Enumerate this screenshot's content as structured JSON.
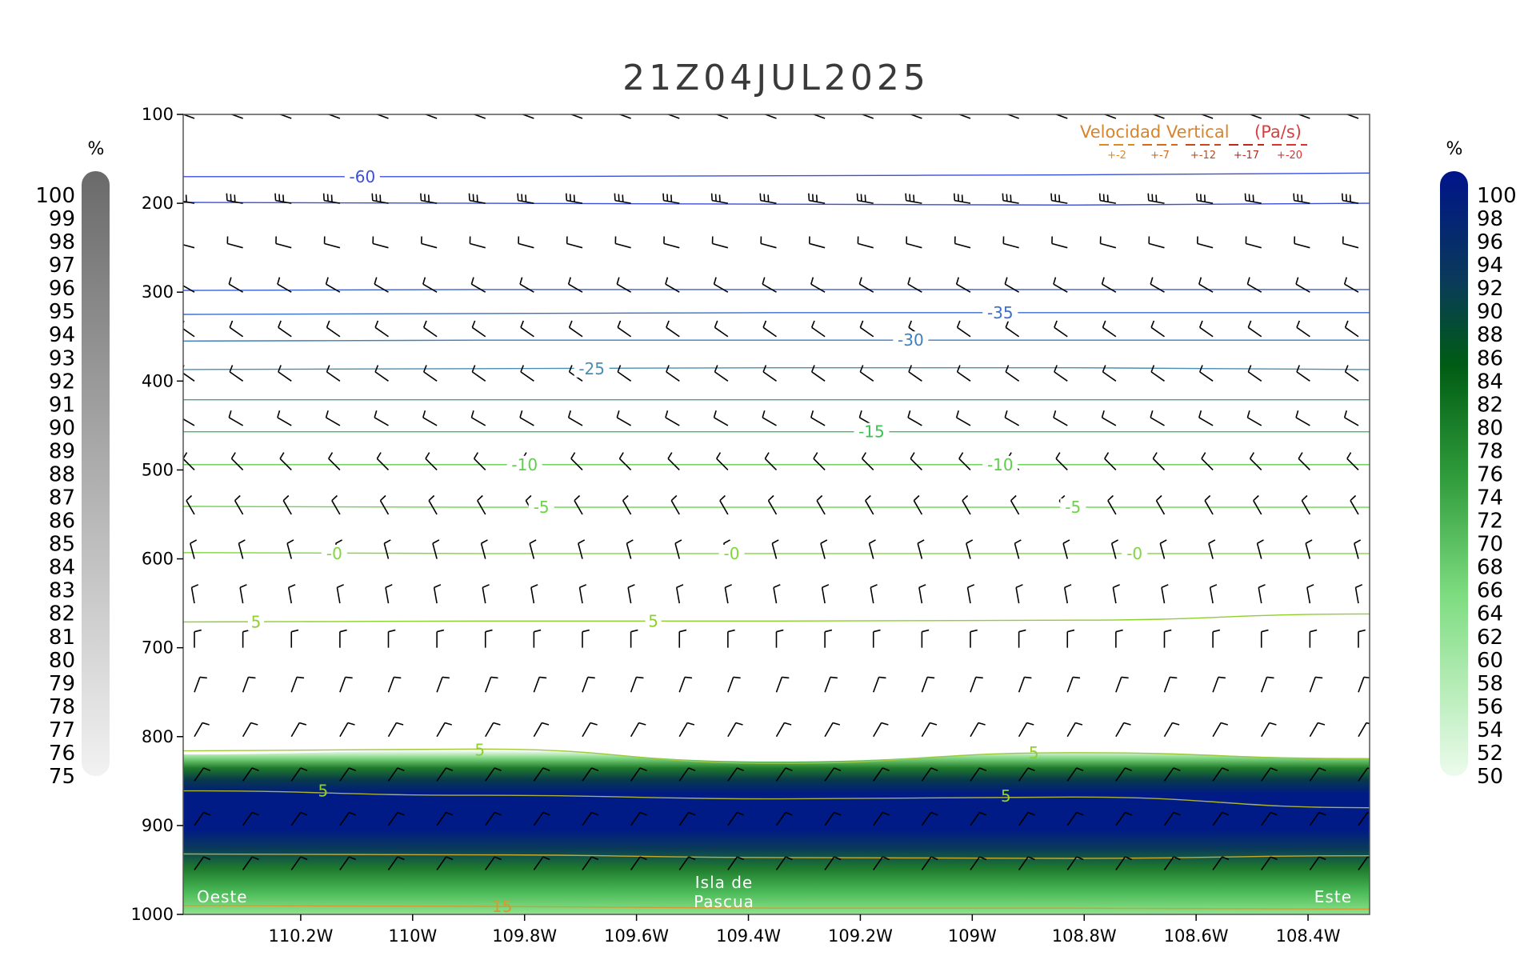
{
  "chart_data": {
    "type": "cross-section",
    "title": "21Z04JUL2025",
    "x_ticks": [
      "110.2W",
      "110W",
      "109.8W",
      "109.6W",
      "109.4W",
      "109.2W",
      "109W",
      "108.8W",
      "108.6W",
      "108.4W"
    ],
    "x_tick_values": [
      -110.2,
      -110.0,
      -109.8,
      -109.6,
      -109.4,
      -109.2,
      -109.0,
      -108.8,
      -108.6,
      -108.4
    ],
    "xlim": [
      -110.41,
      -108.29
    ],
    "y_ticks": [
      "100",
      "200",
      "300",
      "400",
      "500",
      "600",
      "700",
      "800",
      "900",
      "1000"
    ],
    "y_tick_values": [
      100,
      200,
      300,
      400,
      500,
      600,
      700,
      800,
      900,
      1000
    ],
    "ylim": [
      100,
      1000
    ],
    "left_colorbar": {
      "unit": "%",
      "labels": [
        "100",
        "99",
        "98",
        "97",
        "96",
        "95",
        "94",
        "93",
        "92",
        "91",
        "90",
        "89",
        "88",
        "87",
        "86",
        "85",
        "84",
        "83",
        "82",
        "81",
        "80",
        "79",
        "78",
        "77",
        "76",
        "75"
      ]
    },
    "right_colorbar": {
      "unit": "%",
      "labels": [
        "100",
        "98",
        "96",
        "94",
        "92",
        "90",
        "88",
        "86",
        "84",
        "82",
        "80",
        "78",
        "76",
        "74",
        "72",
        "70",
        "68",
        "66",
        "64",
        "62",
        "60",
        "58",
        "56",
        "54",
        "52",
        "50"
      ]
    },
    "vertical_velocity_legend": {
      "title_part1": "Velocidad Vertical",
      "title_part2": "(Pa/s)",
      "items": [
        "+-2",
        "+-7",
        "+-12",
        "+-17",
        "+-20"
      ],
      "colors": [
        "#e08a1e",
        "#d46a1a",
        "#c44a1a",
        "#b8281c",
        "#e03030"
      ]
    },
    "temperature_contours": [
      {
        "label": "-60",
        "color": "#3b4fd8",
        "p": [
          170,
          170,
          169,
          168,
          166
        ]
      },
      {
        "label": "",
        "color": "#3b4fd8",
        "p": [
          199,
          200,
          201,
          202,
          200
        ]
      },
      {
        "label": "",
        "color": "#3b5fd0",
        "p": [
          298,
          297,
          297,
          297,
          297
        ]
      },
      {
        "label": "-35",
        "color": "#3b6fc8",
        "p": [
          325,
          324,
          323,
          323,
          323
        ]
      },
      {
        "label": "-30",
        "color": "#3e7fbf",
        "p": [
          355,
          354,
          354,
          354,
          354
        ]
      },
      {
        "label": "-25",
        "color": "#4a8fb0",
        "p": [
          387,
          386,
          385,
          385,
          387
        ]
      },
      {
        "label": "",
        "color": "#4aa090",
        "p": [
          421,
          421,
          421,
          421,
          421
        ]
      },
      {
        "label": "-15",
        "color": "#3fbf55",
        "p": [
          457,
          457,
          457,
          457,
          457
        ]
      },
      {
        "label": "-10",
        "color": "#5bd14a",
        "p": [
          494,
          494,
          494,
          494,
          494
        ]
      },
      {
        "label": "-5",
        "color": "#6cd44a",
        "p": [
          541,
          542,
          542,
          542,
          542
        ]
      },
      {
        "label": "-0",
        "color": "#80d63e",
        "p": [
          593,
          594,
          594,
          594,
          594
        ]
      },
      {
        "label": "5",
        "color": "#8fcf2e",
        "p": [
          671,
          670,
          670,
          669,
          662
        ]
      },
      {
        "label": "5",
        "color": "#9ec93a",
        "p": [
          816,
          814,
          830,
          818,
          825
        ]
      },
      {
        "label": "5",
        "color": "#a9b33a",
        "p": [
          861,
          866,
          870,
          868,
          880
        ]
      },
      {
        "label": "",
        "color": "#c8a830",
        "p": [
          932,
          933,
          936,
          937,
          934
        ]
      },
      {
        "label": "15",
        "color": "#d89a30",
        "p": [
          990,
          991,
          993,
          993,
          994
        ]
      }
    ],
    "contour_label_positions": [
      {
        "label": "-60",
        "x": -110.09,
        "p": 170
      },
      {
        "label": "-35",
        "x": -108.95,
        "p": 323
      },
      {
        "label": "-30",
        "x": -109.11,
        "p": 354
      },
      {
        "label": "-25",
        "x": -109.68,
        "p": 386
      },
      {
        "label": "-15",
        "x": -109.18,
        "p": 457
      },
      {
        "label": "-10",
        "x": -109.8,
        "p": 494
      },
      {
        "label": "-10",
        "x": -108.95,
        "p": 494
      },
      {
        "label": "-5",
        "x": -109.77,
        "p": 542
      },
      {
        "label": "-5",
        "x": -108.82,
        "p": 542
      },
      {
        "label": "-0",
        "x": -110.14,
        "p": 594
      },
      {
        "label": "-0",
        "x": -109.43,
        "p": 594
      },
      {
        "label": "-0",
        "x": -108.71,
        "p": 594
      },
      {
        "label": "5",
        "x": -110.28,
        "p": 671
      },
      {
        "label": "5",
        "x": -109.57,
        "p": 670
      },
      {
        "label": "5",
        "x": -109.88,
        "p": 815
      },
      {
        "label": "5",
        "x": -108.89,
        "p": 818
      },
      {
        "label": "5",
        "x": -110.16,
        "p": 861
      },
      {
        "label": "5",
        "x": -108.94,
        "p": 867
      },
      {
        "label": "15",
        "x": -109.84,
        "p": 991
      }
    ],
    "humidity_layer_top": [
      820,
      815,
      828,
      818,
      824
    ],
    "humidity_layer_bottom": 1000,
    "wind_barbs_note": "Wind barbs at each level across 25 columns",
    "wind_levels": [
      {
        "p": 100,
        "dir": 290,
        "barbs": 1
      },
      {
        "p": 200,
        "dir": 280,
        "barbs": 3
      },
      {
        "p": 250,
        "dir": 285,
        "barbs": 1
      },
      {
        "p": 300,
        "dir": 300,
        "barbs": 1
      },
      {
        "p": 350,
        "dir": 305,
        "barbs": 1
      },
      {
        "p": 400,
        "dir": 305,
        "barbs": 1
      },
      {
        "p": 450,
        "dir": 300,
        "barbs": 1
      },
      {
        "p": 500,
        "dir": 315,
        "barbs": 1
      },
      {
        "p": 550,
        "dir": 330,
        "barbs": 1
      },
      {
        "p": 600,
        "dir": 345,
        "barbs": 1
      },
      {
        "p": 650,
        "dir": 350,
        "barbs": 1
      },
      {
        "p": 700,
        "dir": 0,
        "barbs": 1
      },
      {
        "p": 750,
        "dir": 20,
        "barbs": 1
      },
      {
        "p": 800,
        "dir": 30,
        "barbs": 1
      },
      {
        "p": 850,
        "dir": 35,
        "barbs": 1
      },
      {
        "p": 900,
        "dir": 35,
        "barbs": 1
      },
      {
        "p": 950,
        "dir": 35,
        "barbs": 1
      }
    ],
    "annotations": {
      "west": "Oeste",
      "east": "Este",
      "center_line1": "Isla de",
      "center_line2": "Pascua"
    }
  }
}
